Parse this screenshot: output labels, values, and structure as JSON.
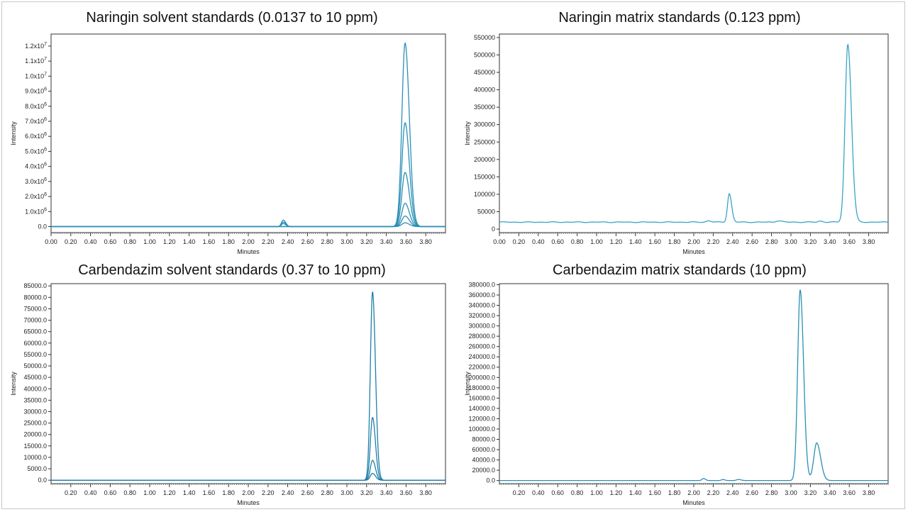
{
  "chart_data": [
    {
      "type": "line",
      "title": "Naringin solvent standards (0.0137 to 10 ppm)",
      "xlabel": "Minutes",
      "ylabel": "Intensity",
      "xlim": [
        0.0,
        4.0
      ],
      "ylim": [
        -400000,
        12800000
      ],
      "x_ticks": [
        "0.00",
        "0.20",
        "0.40",
        "0.60",
        "0.80",
        "1.00",
        "1.20",
        "1.40",
        "1.60",
        "1.80",
        "2.00",
        "2.20",
        "2.40",
        "2.60",
        "2.80",
        "3.00",
        "3.20",
        "3.40",
        "3.60",
        "3.80"
      ],
      "y_ticks": [
        {
          "value": 0,
          "label": "0.0",
          "sup": ""
        },
        {
          "value": 1000000,
          "label": "1.0x10",
          "sup": "6"
        },
        {
          "value": 2000000,
          "label": "2.0x10",
          "sup": "6"
        },
        {
          "value": 3000000,
          "label": "3.0x10",
          "sup": "6"
        },
        {
          "value": 4000000,
          "label": "4.0x10",
          "sup": "6"
        },
        {
          "value": 5000000,
          "label": "5.0x10",
          "sup": "6"
        },
        {
          "value": 6000000,
          "label": "6.0x10",
          "sup": "6"
        },
        {
          "value": 7000000,
          "label": "7.0x10",
          "sup": "6"
        },
        {
          "value": 8000000,
          "label": "8.0x10",
          "sup": "6"
        },
        {
          "value": 9000000,
          "label": "9.0x10",
          "sup": "6"
        },
        {
          "value": 10000000,
          "label": "1.0x10",
          "sup": "7"
        },
        {
          "value": 11000000,
          "label": "1.1x10",
          "sup": "7"
        },
        {
          "value": 12000000,
          "label": "1.2x10",
          "sup": "7"
        }
      ],
      "color": "#2a8fb5",
      "series": [
        {
          "baseline": 0,
          "peaks": [
            {
              "rt": 3.59,
              "height": 12200000,
              "width": 0.032
            },
            {
              "rt": 2.355,
              "height": 430000,
              "width": 0.018
            }
          ]
        },
        {
          "baseline": 0,
          "peaks": [
            {
              "rt": 3.59,
              "height": 6900000,
              "width": 0.032
            },
            {
              "rt": 2.355,
              "height": 300000,
              "width": 0.018
            }
          ]
        },
        {
          "baseline": 0,
          "peaks": [
            {
              "rt": 3.59,
              "height": 3600000,
              "width": 0.032
            },
            {
              "rt": 2.355,
              "height": 200000,
              "width": 0.018
            }
          ]
        },
        {
          "baseline": 0,
          "peaks": [
            {
              "rt": 3.59,
              "height": 1550000,
              "width": 0.032
            }
          ]
        },
        {
          "baseline": 0,
          "peaks": [
            {
              "rt": 3.59,
              "height": 700000,
              "width": 0.032
            }
          ]
        },
        {
          "baseline": 0,
          "peaks": [
            {
              "rt": 3.59,
              "height": 250000,
              "width": 0.032
            }
          ]
        }
      ]
    },
    {
      "type": "line",
      "title": "Naringin matrix standards (0.123 ppm)",
      "xlabel": "Minutes",
      "ylabel": "Intensity",
      "xlim": [
        0.0,
        4.0
      ],
      "ylim": [
        -10000,
        560000
      ],
      "x_ticks": [
        "0.00",
        "0.20",
        "0.40",
        "0.60",
        "0.80",
        "1.00",
        "1.20",
        "1.40",
        "1.60",
        "1.80",
        "2.00",
        "2.20",
        "2.40",
        "2.60",
        "2.80",
        "3.00",
        "3.20",
        "3.40",
        "3.60",
        "3.80"
      ],
      "y_ticks": [
        {
          "value": 0,
          "label": "0",
          "sup": ""
        },
        {
          "value": 50000,
          "label": "50000",
          "sup": ""
        },
        {
          "value": 100000,
          "label": "100000",
          "sup": ""
        },
        {
          "value": 150000,
          "label": "150000",
          "sup": ""
        },
        {
          "value": 200000,
          "label": "200000",
          "sup": ""
        },
        {
          "value": 250000,
          "label": "250000",
          "sup": ""
        },
        {
          "value": 300000,
          "label": "300000",
          "sup": ""
        },
        {
          "value": 350000,
          "label": "350000",
          "sup": ""
        },
        {
          "value": 400000,
          "label": "400000",
          "sup": ""
        },
        {
          "value": 450000,
          "label": "450000",
          "sup": ""
        },
        {
          "value": 500000,
          "label": "500000",
          "sup": ""
        },
        {
          "value": 550000,
          "label": "550000",
          "sup": ""
        }
      ],
      "color": "#3ba3c7",
      "series": [
        {
          "baseline": 20000,
          "peaks": [
            {
              "rt": 3.585,
              "height": 510000,
              "width": 0.028
            },
            {
              "rt": 2.365,
              "height": 82000,
              "width": 0.018
            },
            {
              "rt": 2.15,
              "height": 4000,
              "width": 0.02
            },
            {
              "rt": 2.87,
              "height": 4000,
              "width": 0.025
            },
            {
              "rt": 3.3,
              "height": 3000,
              "width": 0.02
            }
          ]
        }
      ]
    },
    {
      "type": "line",
      "title": "Carbendazim solvent standards (0.37 to 10 ppm)",
      "xlabel": "Minutes",
      "ylabel": "Intensity",
      "xlim": [
        0.0,
        4.0
      ],
      "ylim": [
        -1500,
        86000
      ],
      "x_ticks": [
        "0.20",
        "0.40",
        "0.60",
        "0.80",
        "1.00",
        "1.20",
        "1.40",
        "1.60",
        "1.80",
        "2.00",
        "2.20",
        "2.40",
        "2.60",
        "2.80",
        "3.00",
        "3.20",
        "3.40",
        "3.60",
        "3.80"
      ],
      "x_tick_start": 0.2,
      "y_ticks": [
        {
          "value": 0,
          "label": "0.0",
          "sup": ""
        },
        {
          "value": 5000,
          "label": "5000.0",
          "sup": ""
        },
        {
          "value": 10000,
          "label": "10000.0",
          "sup": ""
        },
        {
          "value": 15000,
          "label": "15000.0",
          "sup": ""
        },
        {
          "value": 20000,
          "label": "20000.0",
          "sup": ""
        },
        {
          "value": 25000,
          "label": "25000.0",
          "sup": ""
        },
        {
          "value": 30000,
          "label": "30000.0",
          "sup": ""
        },
        {
          "value": 35000,
          "label": "35000.0",
          "sup": ""
        },
        {
          "value": 40000,
          "label": "40000.0",
          "sup": ""
        },
        {
          "value": 45000,
          "label": "45000.0",
          "sup": ""
        },
        {
          "value": 50000,
          "label": "50000.0",
          "sup": ""
        },
        {
          "value": 55000,
          "label": "55000.0",
          "sup": ""
        },
        {
          "value": 60000,
          "label": "60000.0",
          "sup": ""
        },
        {
          "value": 65000,
          "label": "65000.0",
          "sup": ""
        },
        {
          "value": 70000,
          "label": "70000.0",
          "sup": ""
        },
        {
          "value": 75000,
          "label": "75000.0",
          "sup": ""
        },
        {
          "value": 80000,
          "label": "80000.0",
          "sup": ""
        },
        {
          "value": 85000,
          "label": "85000.0",
          "sup": ""
        }
      ],
      "color": "#1f7fa8",
      "series": [
        {
          "baseline": 0,
          "peaks": [
            {
              "rt": 3.26,
              "height": 82500,
              "width": 0.022
            }
          ]
        },
        {
          "baseline": 0,
          "peaks": [
            {
              "rt": 3.26,
              "height": 27500,
              "width": 0.022
            }
          ]
        },
        {
          "baseline": 0,
          "peaks": [
            {
              "rt": 3.26,
              "height": 8700,
              "width": 0.022
            }
          ]
        },
        {
          "baseline": 0,
          "peaks": [
            {
              "rt": 3.26,
              "height": 3000,
              "width": 0.022
            }
          ]
        }
      ]
    },
    {
      "type": "line",
      "title": "Carbendazim matrix standards (10 ppm)",
      "xlabel": "Minutes",
      "ylabel": "Intensity",
      "xlim": [
        0.0,
        4.0
      ],
      "ylim": [
        -6000,
        382000
      ],
      "x_ticks": [
        "0.20",
        "0.40",
        "0.60",
        "0.80",
        "1.00",
        "1.20",
        "1.40",
        "1.60",
        "1.80",
        "2.00",
        "2.20",
        "2.40",
        "2.60",
        "2.80",
        "3.00",
        "3.20",
        "3.40",
        "3.60",
        "3.80"
      ],
      "x_tick_start": 0.2,
      "y_ticks": [
        {
          "value": 0,
          "label": "0.0",
          "sup": ""
        },
        {
          "value": 20000,
          "label": "20000.0",
          "sup": ""
        },
        {
          "value": 40000,
          "label": "40000.0",
          "sup": ""
        },
        {
          "value": 60000,
          "label": "60000.0",
          "sup": ""
        },
        {
          "value": 80000,
          "label": "80000.0",
          "sup": ""
        },
        {
          "value": 100000,
          "label": "100000.0",
          "sup": ""
        },
        {
          "value": 120000,
          "label": "120000.0",
          "sup": ""
        },
        {
          "value": 140000,
          "label": "140000.0",
          "sup": ""
        },
        {
          "value": 160000,
          "label": "160000.0",
          "sup": ""
        },
        {
          "value": 180000,
          "label": "180000.0",
          "sup": ""
        },
        {
          "value": 200000,
          "label": "200000.0",
          "sup": ""
        },
        {
          "value": 220000,
          "label": "220000.0",
          "sup": ""
        },
        {
          "value": 240000,
          "label": "240000.0",
          "sup": ""
        },
        {
          "value": 260000,
          "label": "260000.0",
          "sup": ""
        },
        {
          "value": 280000,
          "label": "280000.0",
          "sup": ""
        },
        {
          "value": 300000,
          "label": "300000.0",
          "sup": ""
        },
        {
          "value": 320000,
          "label": "320000.0",
          "sup": ""
        },
        {
          "value": 340000,
          "label": "340000.0",
          "sup": ""
        },
        {
          "value": 360000,
          "label": "360000.0",
          "sup": ""
        },
        {
          "value": 380000,
          "label": "380000.0",
          "sup": ""
        }
      ],
      "color": "#2a8fb5",
      "series": [
        {
          "baseline": 0,
          "peaks": [
            {
              "rt": 3.095,
              "height": 370000,
              "width": 0.026
            },
            {
              "rt": 3.265,
              "height": 73000,
              "width": 0.03
            },
            {
              "rt": 2.1,
              "height": 4000,
              "width": 0.015
            },
            {
              "rt": 2.3,
              "height": 2000,
              "width": 0.015
            },
            {
              "rt": 2.46,
              "height": 2000,
              "width": 0.02
            }
          ]
        }
      ]
    }
  ]
}
